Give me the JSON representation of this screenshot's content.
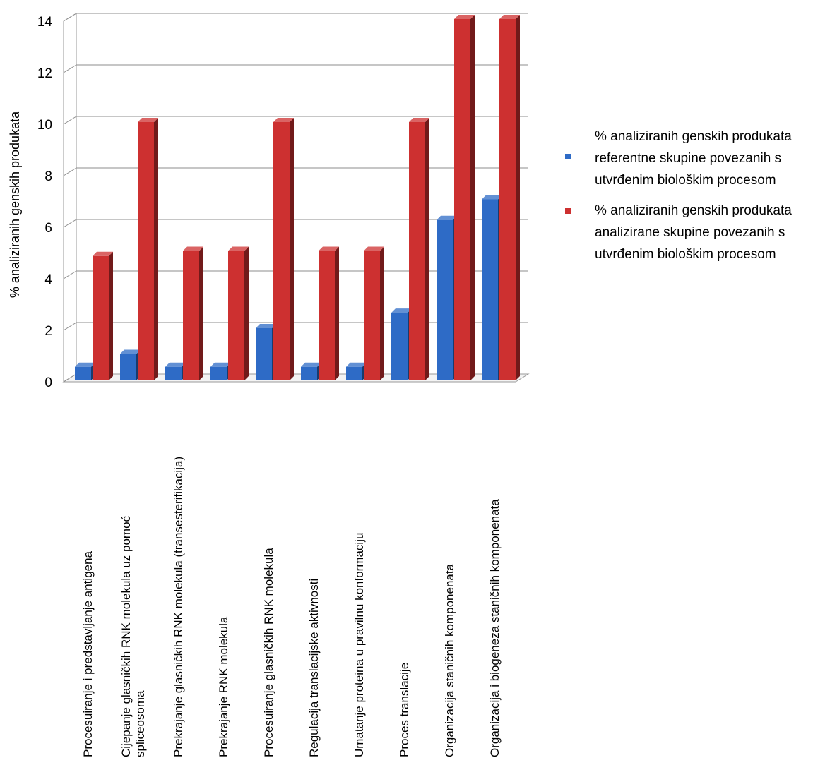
{
  "chart_data": {
    "type": "bar",
    "title": "",
    "ylabel": "% analiziranih genskih produkata",
    "xlabel": "",
    "ylim": [
      0,
      14
    ],
    "yticks": [
      0,
      2,
      4,
      6,
      8,
      10,
      12,
      14
    ],
    "grid": true,
    "legend_position": "right",
    "categories": [
      [
        "Procesuiranje  i  predstavljanje    antigena"
      ],
      [
        "Cijepanje glasničkih RNK molekula uz pomoć",
        "spliceosoma"
      ],
      [
        "Prekrajanje glasničkih RNK molekula (transesterifikacija)"
      ],
      [
        "Prekrajanje  RNK molekula"
      ],
      [
        "Procesuiranje  glasničkih RNK  molekula"
      ],
      [
        "Regulacija  translacijske  aktivnosti"
      ],
      [
        "Umatanje  proteina u pravilnu  konformaciju"
      ],
      [
        "Proces translacije"
      ],
      [
        "Organizacija  staničnih  komponenata"
      ],
      [
        "Organizacija i biogeneza staničnih  komponenata"
      ]
    ],
    "series": [
      {
        "name": "% analiziranih genskih produkata referentne skupine povezanih s utvrđenim biološkim procesom",
        "color": "#2e6bc6",
        "values": [
          0.5,
          1,
          0.5,
          0.5,
          2,
          0.5,
          0.5,
          2.6,
          6.2,
          7
        ]
      },
      {
        "name": "% analiziranih genskih produkata analizirane skupine povezanih s utvrđenim biološkim procesom",
        "color": "#cd3030",
        "values": [
          4.8,
          10,
          5,
          5,
          10,
          5,
          5,
          10,
          14,
          14
        ]
      }
    ]
  },
  "legend": {
    "blue_lines": [
      "% analiziranih genskih produkata",
      "referentne skupine povezanih s",
      "utvrđenim biološkim procesom"
    ],
    "red_lines": [
      "% analiziranih genskih produkata",
      "analizirane skupine povezanih s",
      "utvrđenim biološkim procesom"
    ]
  }
}
